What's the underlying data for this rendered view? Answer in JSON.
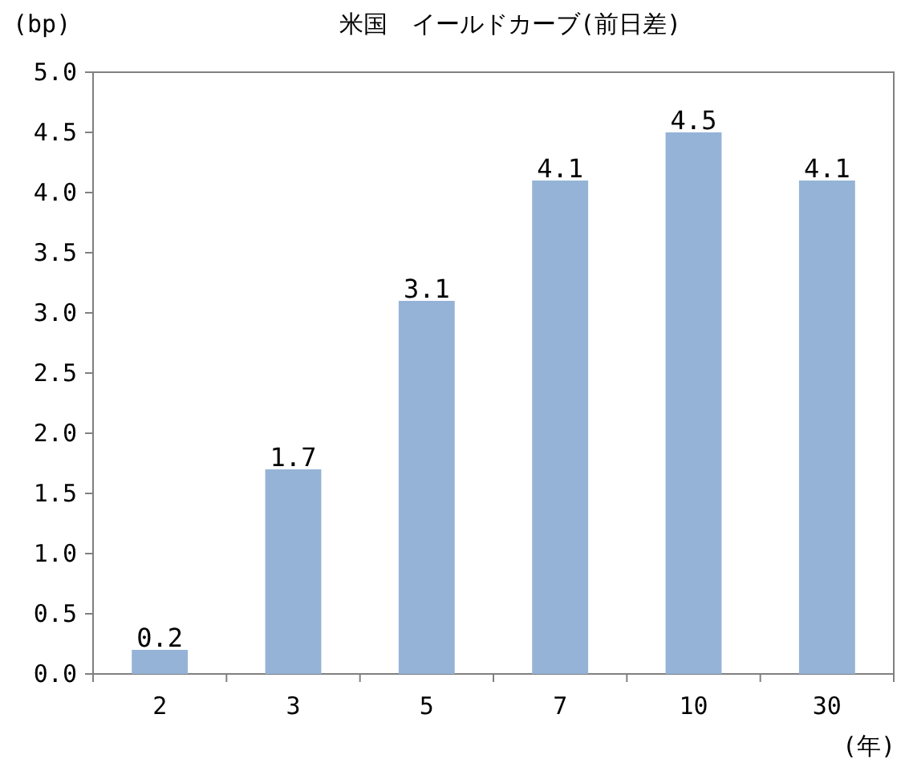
{
  "chart_data": {
    "type": "bar",
    "title": "米国　イールドカーブ(前日差)",
    "ylabel": "(bp)",
    "xlabel": "(年)",
    "categories": [
      "2",
      "3",
      "5",
      "7",
      "10",
      "30"
    ],
    "values": [
      0.2,
      1.7,
      3.1,
      4.1,
      4.5,
      4.1
    ],
    "color": "#95b3d7",
    "ylim": [
      0,
      5
    ],
    "yticks": [
      {
        "value": 0,
        "label": "0.0"
      },
      {
        "value": 0.5,
        "label": "0.5"
      },
      {
        "value": 1,
        "label": "1.0"
      },
      {
        "value": 1.5,
        "label": "1.5"
      },
      {
        "value": 2,
        "label": "2.0"
      },
      {
        "value": 2.5,
        "label": "2.5"
      },
      {
        "value": 3,
        "label": "3.0"
      },
      {
        "value": 3.5,
        "label": "3.5"
      },
      {
        "value": 4,
        "label": "4.0"
      },
      {
        "value": 4.5,
        "label": "4.5"
      },
      {
        "value": 5,
        "label": "5.0"
      }
    ],
    "data_labels": true
  }
}
